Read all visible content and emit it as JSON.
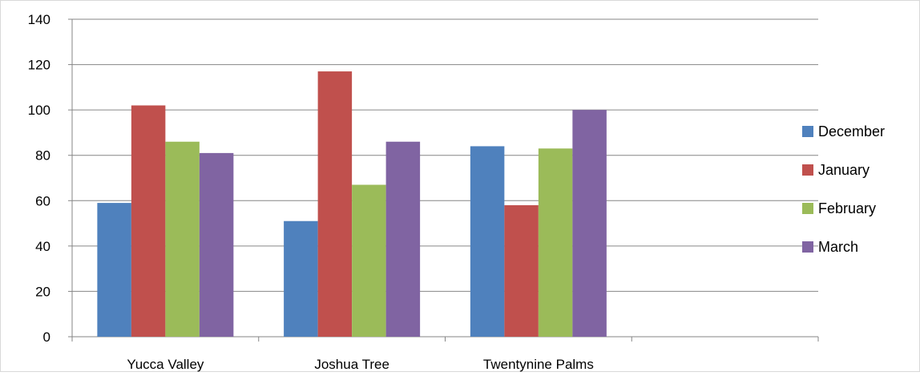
{
  "chart_data": {
    "type": "bar",
    "categories": [
      "Yucca Valley",
      "Joshua Tree",
      "Twentynine Palms",
      ""
    ],
    "series": [
      {
        "name": "December",
        "color": "#4f81bd",
        "values": [
          59,
          51,
          84,
          null
        ]
      },
      {
        "name": "January",
        "color": "#c0504d",
        "values": [
          102,
          117,
          58,
          null
        ]
      },
      {
        "name": "February",
        "color": "#9bbb59",
        "values": [
          86,
          67,
          83,
          null
        ]
      },
      {
        "name": "March",
        "color": "#8064a2",
        "values": [
          81,
          86,
          100,
          null
        ]
      }
    ],
    "y_ticks": [
      "0",
      "20",
      "40",
      "60",
      "80",
      "100",
      "120",
      "140"
    ],
    "ylim": [
      0,
      140
    ],
    "grid": true,
    "legend_position": "right"
  }
}
